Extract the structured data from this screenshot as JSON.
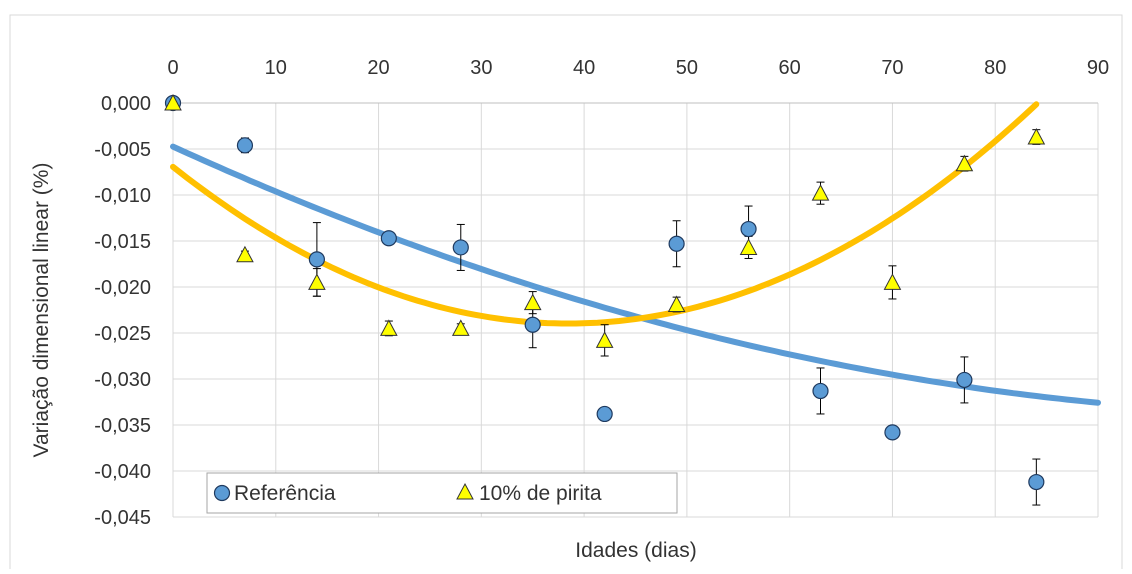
{
  "chart_data": {
    "type": "scatter",
    "xlabel": "Idades (dias)",
    "ylabel": "Variação dimensional linear (%)",
    "xlim": [
      0,
      90
    ],
    "ylim": [
      -0.045,
      0.0
    ],
    "x_ticks": [
      "0",
      "10",
      "20",
      "30",
      "40",
      "50",
      "60",
      "70",
      "80",
      "90"
    ],
    "y_ticks": [
      "0,000",
      "-0,005",
      "-0,010",
      "-0,015",
      "-0,020",
      "-0,025",
      "-0,030",
      "-0,035",
      "-0,040",
      "-0,045"
    ],
    "x_axis_position": "top",
    "grid": true,
    "legend_position": "bottom-left",
    "series": [
      {
        "name": "Referência",
        "marker": "circle",
        "color": "#5B9BD5",
        "x": [
          0,
          7,
          14,
          21,
          28,
          35,
          42,
          49,
          56,
          63,
          70,
          77,
          84
        ],
        "y": [
          0.0,
          -0.0046,
          -0.017,
          -0.0147,
          -0.0157,
          -0.0241,
          -0.0338,
          -0.0153,
          -0.0137,
          -0.0313,
          -0.0358,
          -0.0301,
          -0.0412
        ],
        "error": [
          0.0002,
          0.0008,
          0.004,
          0.0003,
          0.0025,
          0.0025,
          0.0003,
          0.0025,
          0.0025,
          0.0025,
          0.0006,
          0.0025,
          0.0025
        ]
      },
      {
        "name": "10% de pirita",
        "marker": "triangle",
        "color": "#FFFF00",
        "x": [
          0,
          7,
          14,
          21,
          28,
          35,
          42,
          49,
          56,
          63,
          70,
          77,
          84
        ],
        "y": [
          0.0,
          -0.0165,
          -0.0195,
          -0.0245,
          -0.0245,
          -0.0217,
          -0.0258,
          -0.0219,
          -0.0157,
          -0.0098,
          -0.0195,
          -0.0066,
          -0.0037
        ],
        "error": [
          0.0002,
          0.0004,
          0.0015,
          0.0008,
          0.0005,
          0.0012,
          0.0017,
          0.0008,
          0.0012,
          0.0012,
          0.0018,
          0.0008,
          0.0008
        ]
      }
    ],
    "trendlines": [
      {
        "series": "Referência",
        "type": "polynomial-2",
        "color": "#5B9BD5",
        "coefficients": [
          -0.004734,
          -0.000511,
          2.24e-06
        ]
      },
      {
        "series": "10% de pirita",
        "type": "polynomial-2",
        "color": "#FFC000",
        "coefficients": [
          -0.006943,
          -0.000885,
          1.15e-05
        ]
      }
    ]
  }
}
